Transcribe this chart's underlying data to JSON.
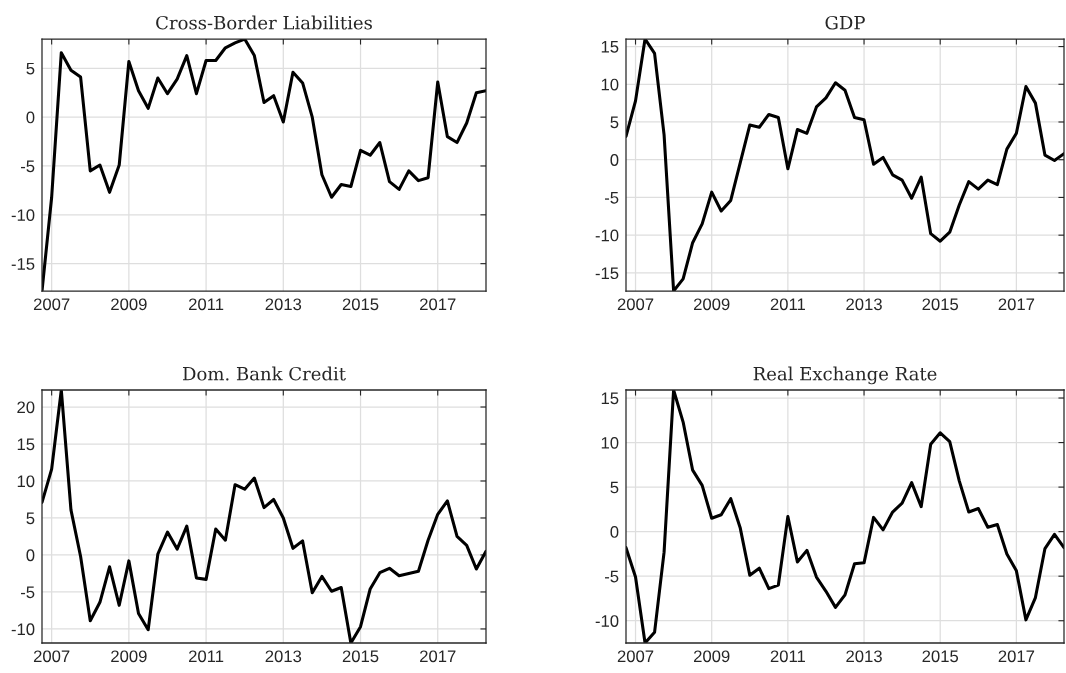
{
  "chart_data": [
    {
      "type": "line",
      "title": "Cross-Border Liabilities",
      "x": [
        2006.75,
        2007,
        2007.25,
        2007.5,
        2007.75,
        2008,
        2008.25,
        2008.5,
        2008.75,
        2009,
        2009.25,
        2009.5,
        2009.75,
        2010,
        2010.25,
        2010.5,
        2010.75,
        2011,
        2011.25,
        2011.5,
        2011.75,
        2012,
        2012.25,
        2012.5,
        2012.75,
        2013,
        2013.25,
        2013.5,
        2013.75,
        2014,
        2014.25,
        2014.5,
        2014.75,
        2015,
        2015.25,
        2015.5,
        2015.75,
        2016,
        2016.25,
        2016.5,
        2016.75,
        2017,
        2017.25,
        2017.5,
        2017.75,
        2018,
        2018.25
      ],
      "xlim": [
        2006.75,
        2018.25
      ],
      "xticks": [
        2007,
        2009,
        2011,
        2013,
        2015,
        2017
      ],
      "ylim": [
        -17.8,
        8
      ],
      "yticks": [
        -15,
        -10,
        -5,
        0,
        5
      ],
      "grid": true,
      "series": [
        {
          "color": "#000000",
          "values": [
            -17.8,
            -8.2,
            6.6,
            4.8,
            4.1,
            -5.5,
            -4.9,
            -7.7,
            -4.9,
            5.7,
            2.7,
            0.9,
            4.0,
            2.4,
            3.9,
            6.3,
            2.4,
            5.8,
            5.8,
            7.1,
            7.6,
            8.0,
            6.3,
            1.5,
            2.2,
            -0.5,
            4.6,
            3.5,
            0.0,
            -5.9,
            -8.2,
            -6.9,
            -7.1,
            -3.4,
            -3.9,
            -2.6,
            -6.6,
            -7.4,
            -5.5,
            -6.5,
            -6.2,
            3.6,
            -2.0,
            -2.6,
            -0.6,
            2.5,
            2.7
          ]
        }
      ]
    },
    {
      "type": "line",
      "title": "GDP",
      "x": [
        2006.75,
        2007,
        2007.25,
        2007.5,
        2007.75,
        2008,
        2008.25,
        2008.5,
        2008.75,
        2009,
        2009.25,
        2009.5,
        2009.75,
        2010,
        2010.25,
        2010.5,
        2010.75,
        2011,
        2011.25,
        2011.5,
        2011.75,
        2012,
        2012.25,
        2012.5,
        2012.75,
        2013,
        2013.25,
        2013.5,
        2013.75,
        2014,
        2014.25,
        2014.5,
        2014.75,
        2015,
        2015.25,
        2015.5,
        2015.75,
        2016,
        2016.25,
        2016.5,
        2016.75,
        2017,
        2017.25,
        2017.5,
        2017.75,
        2018,
        2018.25
      ],
      "xlim": [
        2006.75,
        2018.25
      ],
      "xticks": [
        2007,
        2009,
        2011,
        2013,
        2015,
        2017
      ],
      "ylim": [
        -17.4,
        16
      ],
      "yticks": [
        -15,
        -10,
        -5,
        0,
        5,
        10,
        15
      ],
      "grid": true,
      "series": [
        {
          "color": "#000000",
          "values": [
            3.1,
            7.8,
            16.0,
            14.1,
            3.3,
            -17.4,
            -15.8,
            -11.0,
            -8.5,
            -4.3,
            -6.8,
            -5.4,
            -0.4,
            4.6,
            4.3,
            6.0,
            5.6,
            -1.2,
            4.0,
            3.5,
            7.0,
            8.2,
            10.2,
            9.2,
            5.6,
            5.3,
            -0.6,
            0.3,
            -2.0,
            -2.7,
            -5.1,
            -2.3,
            -9.8,
            -10.8,
            -9.6,
            -6.0,
            -2.9,
            -3.9,
            -2.7,
            -3.3,
            1.4,
            3.5,
            9.7,
            7.5,
            0.6,
            -0.1,
            0.8
          ]
        }
      ]
    },
    {
      "type": "line",
      "title": "Dom. Bank Credit",
      "x": [
        2006.75,
        2007,
        2007.25,
        2007.5,
        2007.75,
        2008,
        2008.25,
        2008.5,
        2008.75,
        2009,
        2009.25,
        2009.5,
        2009.75,
        2010,
        2010.25,
        2010.5,
        2010.75,
        2011,
        2011.25,
        2011.5,
        2011.75,
        2012,
        2012.25,
        2012.5,
        2012.75,
        2013,
        2013.25,
        2013.5,
        2013.75,
        2014,
        2014.25,
        2014.5,
        2014.75,
        2015,
        2015.25,
        2015.5,
        2015.75,
        2016,
        2016.25,
        2016.5,
        2016.75,
        2017,
        2017.25,
        2017.5,
        2017.75,
        2018,
        2018.25
      ],
      "xlim": [
        2006.75,
        2018.25
      ],
      "xticks": [
        2007,
        2009,
        2011,
        2013,
        2015,
        2017
      ],
      "ylim": [
        -11.9,
        22.3
      ],
      "yticks": [
        -10,
        -5,
        0,
        5,
        10,
        15,
        20
      ],
      "grid": true,
      "series": [
        {
          "color": "#000000",
          "values": [
            7.1,
            11.6,
            22.3,
            6.1,
            -0.2,
            -8.9,
            -6.4,
            -1.6,
            -6.8,
            -0.8,
            -7.9,
            -10.1,
            0.1,
            3.1,
            0.8,
            3.9,
            -3.1,
            -3.3,
            3.5,
            2.0,
            9.5,
            8.9,
            10.4,
            6.4,
            7.5,
            5.0,
            0.9,
            1.9,
            -5.1,
            -2.9,
            -4.9,
            -4.4,
            -11.9,
            -9.7,
            -4.6,
            -2.4,
            -1.8,
            -2.8,
            -2.5,
            -2.2,
            2.0,
            5.5,
            7.3,
            2.5,
            1.3,
            -1.9,
            0.5
          ]
        }
      ]
    },
    {
      "type": "line",
      "title": "Real Exchange Rate",
      "x": [
        2006.75,
        2007,
        2007.25,
        2007.5,
        2007.75,
        2008,
        2008.25,
        2008.5,
        2008.75,
        2009,
        2009.25,
        2009.5,
        2009.75,
        2010,
        2010.25,
        2010.5,
        2010.75,
        2011,
        2011.25,
        2011.5,
        2011.75,
        2012,
        2012.25,
        2012.5,
        2012.75,
        2013,
        2013.25,
        2013.5,
        2013.75,
        2014,
        2014.25,
        2014.5,
        2014.75,
        2015,
        2015.25,
        2015.5,
        2015.75,
        2016,
        2016.25,
        2016.5,
        2016.75,
        2017,
        2017.25,
        2017.5,
        2017.75,
        2018,
        2018.25
      ],
      "xlim": [
        2006.75,
        2018.25
      ],
      "xticks": [
        2007,
        2009,
        2011,
        2013,
        2015,
        2017
      ],
      "ylim": [
        -12.5,
        15.9
      ],
      "yticks": [
        -10,
        -5,
        0,
        5,
        10,
        15
      ],
      "grid": true,
      "series": [
        {
          "color": "#000000",
          "values": [
            -1.8,
            -5.1,
            -12.5,
            -11.3,
            -2.3,
            15.9,
            12.3,
            6.9,
            5.2,
            1.5,
            1.9,
            3.7,
            0.4,
            -4.9,
            -4.1,
            -6.4,
            -6.0,
            1.7,
            -3.4,
            -2.1,
            -5.1,
            -6.7,
            -8.5,
            -7.1,
            -3.6,
            -3.5,
            1.6,
            0.2,
            2.2,
            3.2,
            5.5,
            2.8,
            9.8,
            11.1,
            10.1,
            5.7,
            2.2,
            2.6,
            0.5,
            0.8,
            -2.5,
            -4.4,
            -9.9,
            -7.4,
            -1.9,
            -0.3,
            -1.8
          ]
        }
      ]
    }
  ]
}
